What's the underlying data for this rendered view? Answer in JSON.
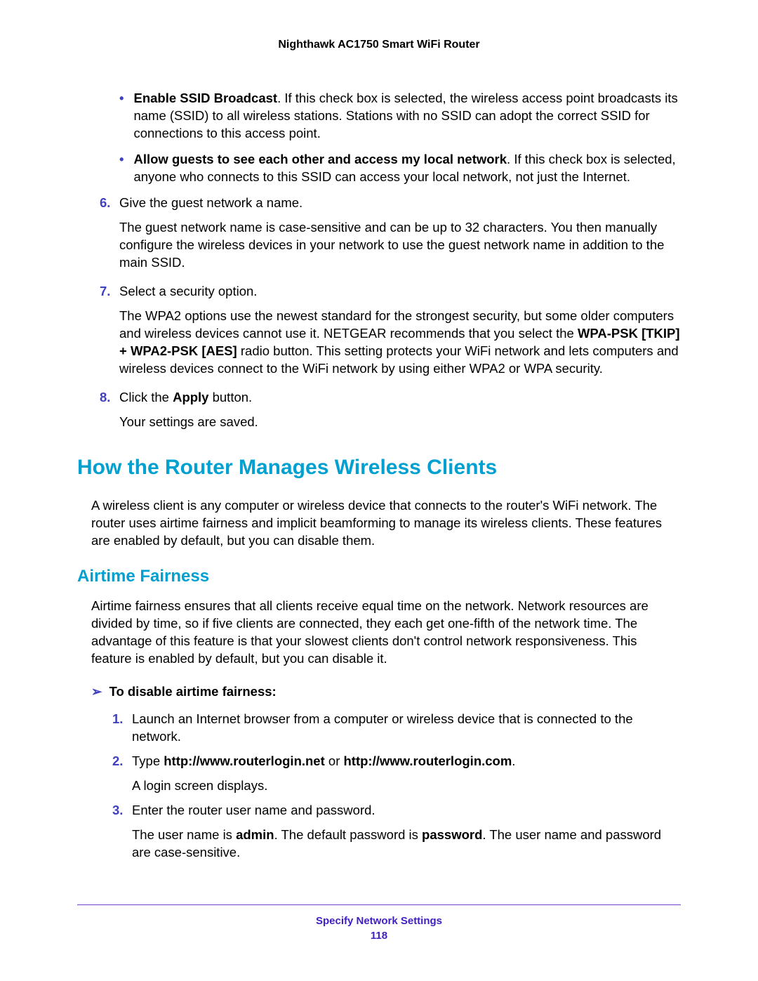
{
  "header": {
    "title": "Nighthawk AC1750 Smart WiFi Router"
  },
  "bullets": [
    {
      "bold": "Enable SSID Broadcast",
      "text": ". If this check box is selected, the wireless access point broadcasts its name (SSID) to all wireless stations. Stations with no SSID can adopt the correct SSID for connections to this access point."
    },
    {
      "bold": "Allow guests to see each other and access my local network",
      "text": ". If this check box is selected, anyone who connects to this SSID can access your local network, not just the Internet."
    }
  ],
  "steps": {
    "s6": {
      "num": "6.",
      "text": "Give the guest network a name.",
      "follow": "The guest network name is case-sensitive and can be up to 32 characters. You then manually configure the wireless devices in your network to use the guest network name in addition to the main SSID."
    },
    "s7": {
      "num": "7.",
      "text": "Select a security option.",
      "follow_pre": "The WPA2 options use the newest standard for the strongest security, but some older computers and wireless devices cannot use it. NETGEAR recommends that you select the ",
      "follow_bold": "WPA-PSK [TKIP] + WPA2-PSK [AES]",
      "follow_post": " radio button. This setting protects your WiFi network and lets computers and wireless devices connect to the WiFi network by using either WPA2 or WPA security."
    },
    "s8": {
      "num": "8.",
      "pre": "Click the ",
      "bold": "Apply",
      "post": " button.",
      "follow": "Your settings are saved."
    }
  },
  "section": {
    "h1": "How the Router Manages Wireless Clients",
    "para": "A wireless client is any computer or wireless device that connects to the router's WiFi network. The router uses airtime fairness and implicit beamforming to manage its wireless clients. These features are enabled by default, but you can disable them.",
    "h2": "Airtime Fairness",
    "para2": "Airtime fairness ensures that all clients receive equal time on the network. Network resources are divided by time, so if five clients are connected, they each get one-fifth of the network time. The advantage of this feature is that your slowest clients don't control network responsiveness. This feature is enabled by default, but you can disable it.",
    "task": "To disable airtime fairness:",
    "substeps": {
      "s1": {
        "num": "1.",
        "text": "Launch an Internet browser from a computer or wireless device that is connected to the network."
      },
      "s2": {
        "num": "2.",
        "pre": "Type ",
        "bold1": "http://www.routerlogin.net",
        "mid": " or ",
        "bold2": "http://www.routerlogin.com",
        "post": ".",
        "follow": "A login screen displays."
      },
      "s3": {
        "num": "3.",
        "text": "Enter the router user name and password.",
        "follow_pre": "The user name is ",
        "follow_b1": "admin",
        "follow_mid": ". The default password is ",
        "follow_b2": "password",
        "follow_post": ". The user name and password are case-sensitive."
      }
    }
  },
  "footer": {
    "section": "Specify Network Settings",
    "page": "118"
  }
}
